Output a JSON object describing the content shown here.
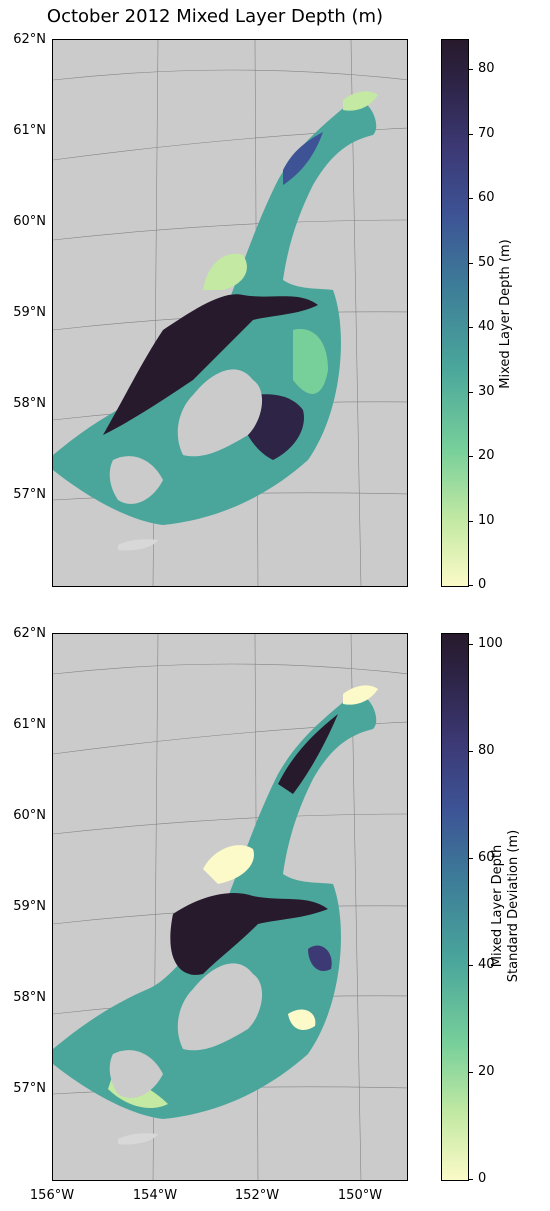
{
  "title": "October 2012 Mixed Layer Depth (m)",
  "lat_labels": [
    "62°N",
    "61°N",
    "60°N",
    "59°N",
    "58°N",
    "57°N"
  ],
  "lon_labels": [
    "156°W",
    "154°W",
    "152°W",
    "150°W"
  ],
  "top_colorbar": {
    "label": "Mixed Layer Depth (m)",
    "ticks": [
      "0",
      "10",
      "20",
      "30",
      "40",
      "50",
      "60",
      "70",
      "80"
    ],
    "range": [
      0,
      85
    ]
  },
  "bottom_colorbar": {
    "label_line1": "Mixed Layer Depth",
    "label_line2": "Standard Deviation (m)",
    "ticks": [
      "0",
      "20",
      "40",
      "60",
      "80",
      "100"
    ],
    "range": [
      0,
      102
    ]
  },
  "colors": {
    "land": "#cbcbcb",
    "low": "#fbfac8",
    "mid": "#4aa69b",
    "high": "#271a2c"
  }
}
